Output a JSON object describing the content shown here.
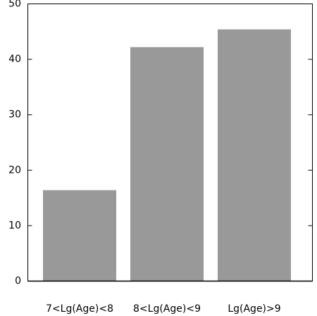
{
  "chart_data": {
    "type": "bar",
    "categories": [
      "7<Lg(Age)<8",
      "8<Lg(Age)<9",
      "Lg(Age)>9"
    ],
    "values": [
      16.4,
      42.2,
      45.4
    ],
    "color": "#999999",
    "ylim": [
      0,
      50
    ],
    "yticks": [
      0,
      10,
      20,
      30,
      40,
      50
    ],
    "grid": false
  }
}
